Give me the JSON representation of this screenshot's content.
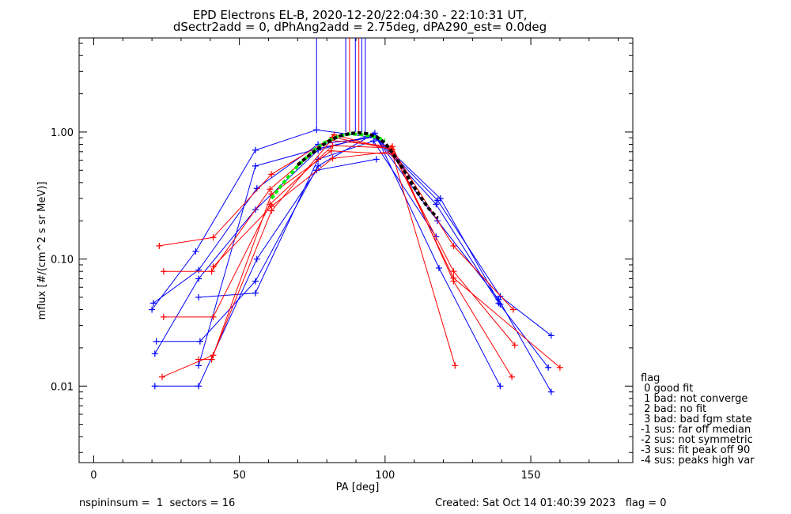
{
  "title_line1": "EPD Electrons EL-B, 2020-12-20/22:04:30 - 22:10:31 UT,",
  "title_line2": "dSectr2add = 0, dPhAng2add = 2.75deg, dPA290_est=   0.0deg",
  "footer_left": "nspininsum =  1  sectors = 16",
  "footer_right": "Created: Sat Oct 14 01:40:39 2023   flag = 0",
  "legend": {
    "title": "flag",
    "items": [
      " 0 good fit",
      " 1 bad: not converge",
      " 2 bad: no fit",
      " 3 bad: bad fgm state",
      "-1 sus: far off median",
      "-2 sus: not symmetric",
      "-3 sus: fit peak off 90",
      "-4 sus: peaks high var"
    ]
  },
  "chart_data": {
    "type": "line",
    "xlabel": "PA [deg]",
    "ylabel": "mflux [#/(cm^2 s sr MeV)]",
    "xlim": [
      -5,
      185
    ],
    "ylim": [
      0.0025,
      5.5
    ],
    "ylog": true,
    "xticks": [
      0,
      50,
      100,
      150
    ],
    "xtick_labels": [
      "0",
      "50",
      "100",
      "150"
    ],
    "yticks": [
      0.01,
      0.1,
      1.0
    ],
    "ytick_labels": [
      "0.01",
      "0.10",
      "1.00"
    ],
    "grid": false,
    "colors": {
      "blue": "#0000ff",
      "red": "#ff0000",
      "green": "#00ee00",
      "black": "#000000"
    },
    "vertical_lines": [
      {
        "x": 76.5,
        "y_from": 1.08,
        "color": "#0000ff"
      },
      {
        "x": 86.5,
        "y_from": 1.0,
        "color": "#0000ff"
      },
      {
        "x": 87.8,
        "y_from": 1.0,
        "color": "#ff0000"
      },
      {
        "x": 89.8,
        "y_from": 1.0,
        "color": "#0000ff"
      },
      {
        "x": 91.0,
        "y_from": 1.0,
        "color": "#ff0000"
      },
      {
        "x": 92.0,
        "y_from": 1.0,
        "color": "#0000ff"
      },
      {
        "x": 93.2,
        "y_from": 1.0,
        "color": "#0000ff"
      }
    ],
    "series": [
      {
        "color": "#0000ff",
        "x": [
          20,
          35,
          55.5,
          76.5,
          97,
          118,
          139.5,
          157
        ],
        "y": [
          0.04,
          0.115,
          0.72,
          1.04,
          0.9,
          0.29,
          0.051,
          0.025
        ]
      },
      {
        "color": "#0000ff",
        "x": [
          20.5,
          36,
          56,
          77,
          96.5,
          117.5,
          139,
          156
        ],
        "y": [
          0.045,
          0.082,
          0.36,
          0.8,
          0.91,
          0.27,
          0.045,
          0.014
        ]
      },
      {
        "color": "#0000ff",
        "x": [
          21,
          36,
          55.5,
          77,
          96,
          118,
          139,
          157
        ],
        "y": [
          0.018,
          0.07,
          0.245,
          0.72,
          0.95,
          0.2,
          0.048,
          0.009
        ]
      },
      {
        "color": "#0000ff",
        "x": [
          21.5,
          36.5,
          55.5,
          77,
          96.5,
          118.5,
          139.5
        ],
        "y": [
          0.0225,
          0.0225,
          0.067,
          0.54,
          0.98,
          0.085,
          0.01
        ]
      },
      {
        "color": "#0000ff",
        "x": [
          21,
          36,
          56,
          76.5,
          97
        ],
        "y": [
          0.01,
          0.01,
          0.1,
          0.5,
          0.61
        ]
      },
      {
        "color": "#0000ff",
        "x": [
          36,
          55.5,
          77,
          96,
          117.5
        ],
        "y": [
          0.05,
          0.054,
          0.61,
          0.85,
          0.15
        ]
      },
      {
        "color": "#0000ff",
        "x": [
          36,
          55.5,
          77,
          96.5,
          119,
          139.5
        ],
        "y": [
          0.0145,
          0.54,
          0.74,
          0.93,
          0.3,
          0.044
        ]
      },
      {
        "color": "#ff0000",
        "x": [
          22.5,
          41,
          61,
          82,
          102.5,
          123.5,
          144
        ],
        "y": [
          0.127,
          0.148,
          0.465,
          0.91,
          0.73,
          0.127,
          0.04
        ]
      },
      {
        "color": "#ff0000",
        "x": [
          24,
          40.5,
          60.5,
          82.5,
          102,
          123.5,
          144.5
        ],
        "y": [
          0.08,
          0.08,
          0.355,
          0.95,
          0.73,
          0.08,
          0.021
        ]
      },
      {
        "color": "#ff0000",
        "x": [
          24,
          41,
          60.5,
          82,
          102,
          123.5,
          160
        ],
        "y": [
          0.035,
          0.035,
          0.27,
          0.78,
          0.75,
          0.071,
          0.014
        ]
      },
      {
        "color": "#ff0000",
        "x": [
          23.5,
          41,
          61,
          81.5,
          102.5,
          123.5,
          143.5
        ],
        "y": [
          0.0118,
          0.0175,
          0.24,
          0.86,
          0.77,
          0.067,
          0.0118
        ]
      },
      {
        "color": "#ff0000",
        "x": [
          36,
          40.5,
          61,
          81.5,
          102.5,
          124
        ],
        "y": [
          0.0162,
          0.0162,
          0.325,
          0.71,
          0.67,
          0.0145
        ]
      },
      {
        "color": "#ff0000",
        "x": [
          41,
          61,
          82,
          102
        ],
        "y": [
          0.087,
          0.26,
          0.62,
          0.7
        ]
      }
    ],
    "fit_curves": [
      {
        "color": "#00ee00",
        "style": "dashed",
        "x": [
          61,
          64,
          67,
          70,
          73,
          76,
          79,
          82,
          85,
          88,
          91,
          94,
          97,
          100
        ],
        "y": [
          0.3,
          0.37,
          0.45,
          0.54,
          0.63,
          0.73,
          0.82,
          0.89,
          0.94,
          0.965,
          0.96,
          0.94,
          0.91,
          0.86
        ]
      },
      {
        "color": "#000000",
        "style": "dashed",
        "x": [
          70,
          73,
          76,
          79,
          82,
          85,
          88,
          91,
          94,
          97,
          100,
          103,
          106,
          109,
          112,
          115,
          118
        ],
        "y": [
          0.55,
          0.63,
          0.71,
          0.8,
          0.88,
          0.94,
          0.975,
          0.985,
          0.97,
          0.92,
          0.82,
          0.66,
          0.52,
          0.4,
          0.31,
          0.25,
          0.21
        ]
      }
    ]
  }
}
